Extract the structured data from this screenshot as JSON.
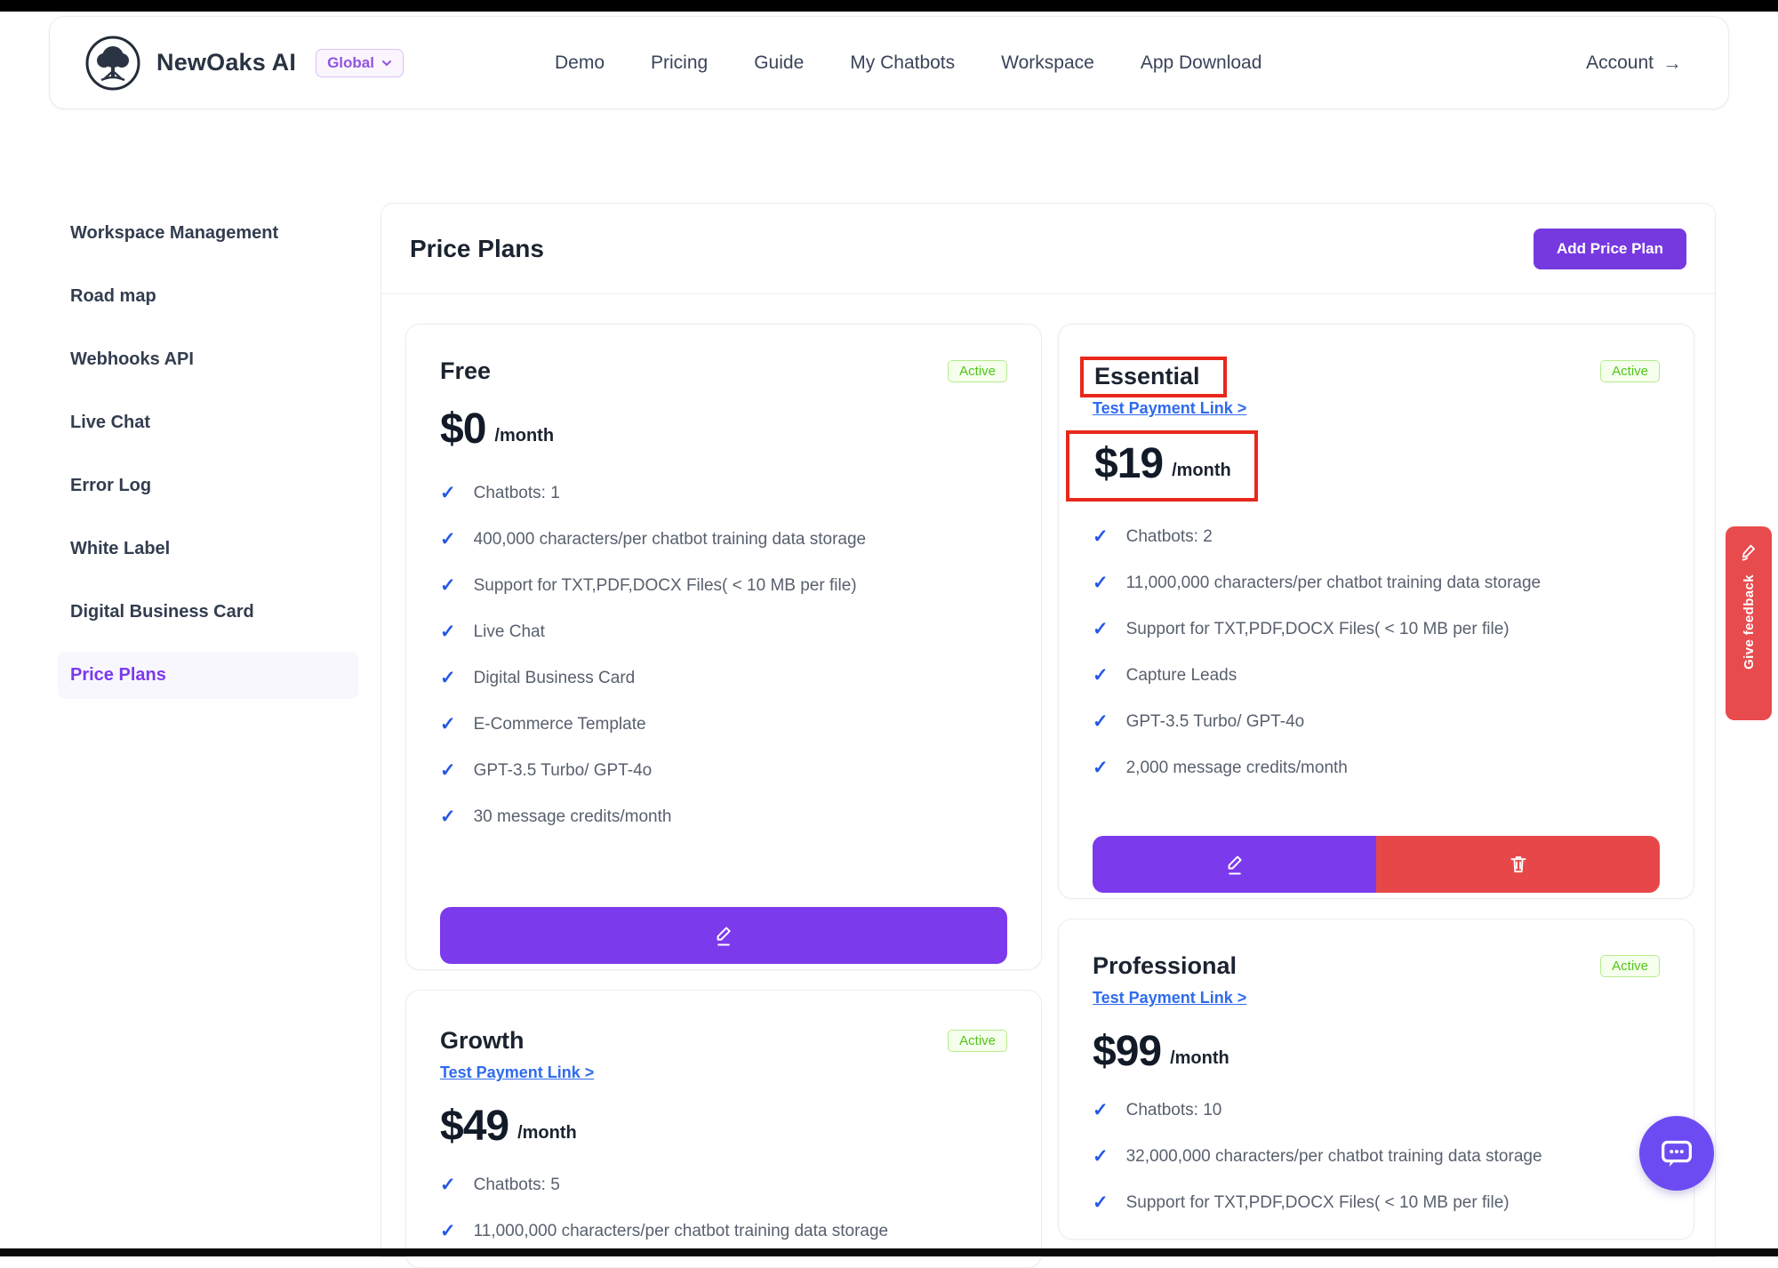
{
  "colors": {
    "accent_purple": "#7c3aed",
    "add_button_purple": "#7639e0",
    "danger_red": "#e84749",
    "annotation_red": "#e8281b",
    "success_green": "#52c41a",
    "link_blue": "#2f6bed",
    "check_blue": "#2457e6",
    "region_purple": "#9254de"
  },
  "icons": {
    "check": "✓",
    "account_arrow": "→"
  },
  "navbar": {
    "brand": "NewOaks AI",
    "region_badge": "Global",
    "links": {
      "demo": "Demo",
      "pricing": "Pricing",
      "guide": "Guide",
      "my_chatbots": "My Chatbots",
      "workspace": "Workspace",
      "app_download": "App Download"
    },
    "account_label": "Account"
  },
  "sidebar": {
    "items": {
      "workspace_management": "Workspace Management",
      "road_map": "Road map",
      "webhooks_api": "Webhooks API",
      "live_chat": "Live Chat",
      "error_log": "Error Log",
      "white_label": "White Label",
      "digital_business_card": "Digital Business Card",
      "price_plans": "Price Plans"
    },
    "active_item": "Price Plans"
  },
  "main": {
    "title": "Price Plans",
    "add_button_label": "Add Price Plan",
    "plans": [
      {
        "name": "Free",
        "status": "Active",
        "price": "$0",
        "period": "/month",
        "features": [
          "Chatbots: 1",
          "400,000 characters/per chatbot training data storage",
          "Support for TXT,PDF,DOCX Files( < 10 MB per file)",
          "Live Chat",
          "Digital Business Card",
          "E-Commerce Template",
          "GPT-3.5 Turbo/ GPT-4o",
          "30 message credits/month"
        ]
      },
      {
        "name": "Essential",
        "status": "Active",
        "payment_link": "Test Payment Link >",
        "price": "$19",
        "period": "/month",
        "features": [
          "Chatbots: 2",
          "11,000,000 characters/per chatbot training data storage",
          "Support for TXT,PDF,DOCX Files( < 10 MB per file)",
          "Capture Leads",
          "GPT-3.5 Turbo/ GPT-4o",
          "2,000 message credits/month"
        ],
        "annotated": true
      },
      {
        "name": "Growth",
        "status": "Active",
        "payment_link": "Test Payment Link >",
        "price": "$49",
        "period": "/month",
        "features": [
          "Chatbots: 5",
          "11,000,000 characters/per chatbot training data storage"
        ]
      },
      {
        "name": "Professional",
        "status": "Active",
        "payment_link": "Test Payment Link >",
        "price": "$99",
        "period": "/month",
        "features": [
          "Chatbots: 10",
          "32,000,000 characters/per chatbot training data storage",
          "Support for TXT,PDF,DOCX Files( < 10 MB per file)"
        ]
      }
    ]
  },
  "feedback_tab": {
    "label": "Give feedback"
  },
  "chat_button": {
    "icon": "chat-bubble"
  }
}
